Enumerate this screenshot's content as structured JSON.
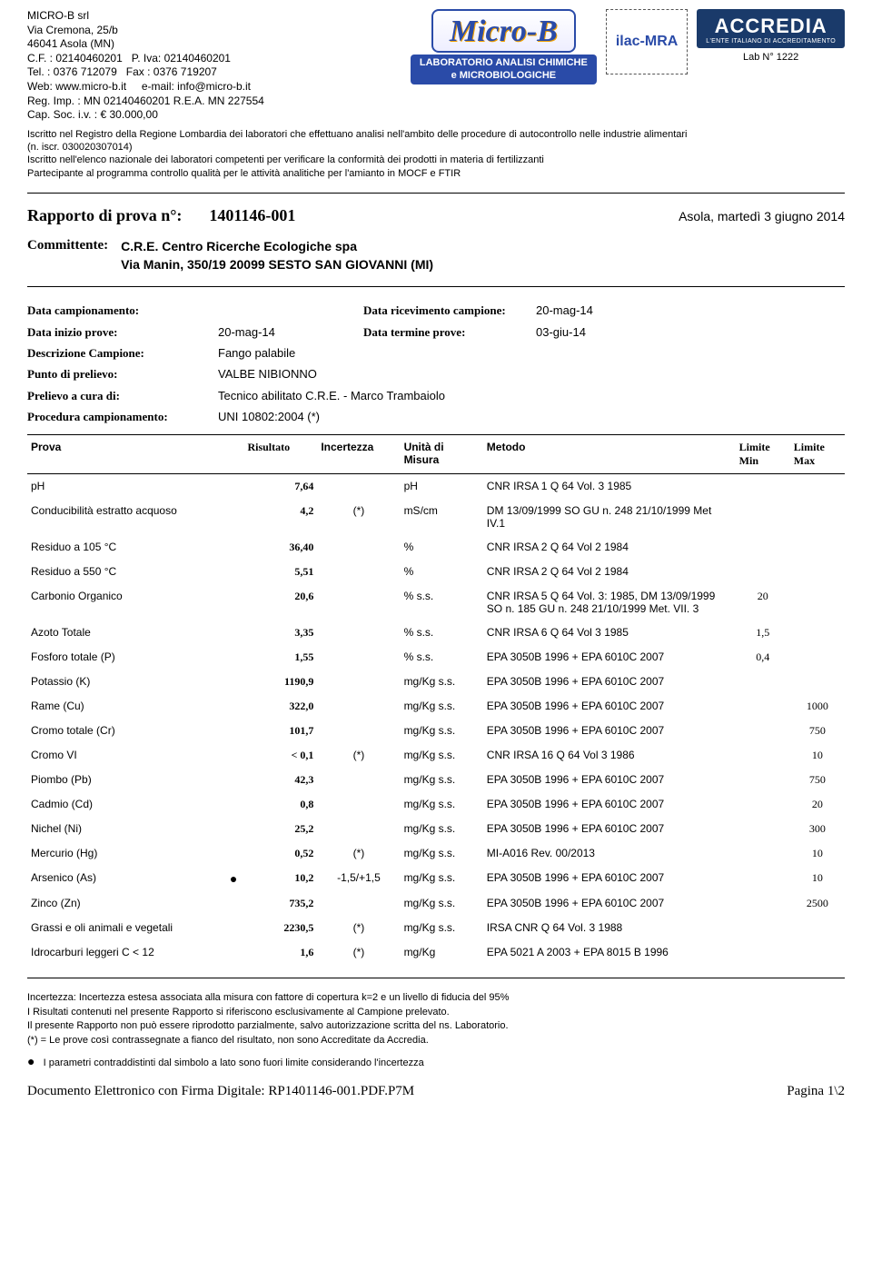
{
  "company": {
    "name": "MICRO-B srl",
    "street": "Via Cremona, 25/b",
    "city": "46041 Asola (MN)",
    "cf": "C.F. : 02140460201",
    "piva": "P. Iva: 02140460201",
    "tel": "Tel. : 0376 712079",
    "fax": "Fax : 0376 719207",
    "web": "Web: www.micro-b.it",
    "email": "e-mail: info@micro-b.it",
    "reg": "Reg. Imp. :    MN 02140460201 R.E.A. MN 227554",
    "cap": "Cap. Soc. i.v. :    € 30.000,00"
  },
  "logos": {
    "brand": "Micro-B",
    "lab_sub1": "LABORATORIO ANALISI CHIMICHE",
    "lab_sub2": "e MICROBIOLOGICHE",
    "ilac": "ilac-MRA",
    "accredia": "ACCREDIA",
    "accredia_sub": "L'ENTE ITALIANO DI ACCREDITAMENTO",
    "lab_no": "Lab N° 1222"
  },
  "registry": {
    "line1": "Iscritto nel Registro della Regione Lombardia dei laboratori che effettuano analisi nell'ambito delle procedure di autocontrollo nelle industrie alimentari",
    "line2": "(n. iscr. 030020307014)",
    "line3": "Iscritto nell'elenco nazionale dei laboratori competenti per verificare la conformità dei prodotti in materia di fertilizzanti",
    "line4": "Partecipante al programma controllo qualità per le attività analitiche per l'amianto in MOCF e FTIR"
  },
  "report": {
    "title_label": "Rapporto di prova n°:",
    "number": "1401146-001",
    "date": "Asola, martedì 3 giugno 2014"
  },
  "client": {
    "label": "Committente:",
    "name": "C.R.E. Centro Ricerche Ecologiche spa",
    "addr": "Via Manin, 350/19 20099 SESTO SAN GIOVANNI (MI)"
  },
  "meta": {
    "data_camp_label": "Data campionamento:",
    "data_ricev_label": "Data ricevimento campione:",
    "data_ricev_value": "20-mag-14",
    "data_inizio_label": "Data inizio prove:",
    "data_inizio_value": "20-mag-14",
    "data_termine_label": "Data termine prove:",
    "data_termine_value": "03-giu-14",
    "desc_label": "Descrizione Campione:",
    "desc_value": "Fango palabile",
    "punto_label": "Punto di prelievo:",
    "punto_value": "VALBE NIBIONNO",
    "prelievo_label": "Prelievo a cura di:",
    "prelievo_value": "Tecnico abilitato C.R.E. - Marco Trambaiolo",
    "proc_label": "Procedura campionamento:",
    "proc_value": "UNI 10802:2004 (*)"
  },
  "table_headers": {
    "prova": "Prova",
    "risultato": "Risultato",
    "incertezza": "Incertezza",
    "unita": "Unità di Misura",
    "metodo": "Metodo",
    "min": "Limite Min",
    "max": "Limite Max"
  },
  "rows": [
    {
      "prova": "pH",
      "mark": "",
      "ris": "7,64",
      "inc": "",
      "unit": "pH",
      "met": "CNR IRSA 1 Q 64 Vol. 3 1985",
      "min": "",
      "max": ""
    },
    {
      "prova": "Conducibilità estratto acquoso",
      "mark": "",
      "ris": "4,2",
      "inc": "(*)",
      "unit": "mS/cm",
      "met": "DM 13/09/1999 SO GU n. 248 21/10/1999 Met IV.1",
      "min": "",
      "max": ""
    },
    {
      "prova": "Residuo a 105 °C",
      "mark": "",
      "ris": "36,40",
      "inc": "",
      "unit": "%",
      "met": "CNR IRSA 2 Q 64 Vol 2 1984",
      "min": "",
      "max": ""
    },
    {
      "prova": "Residuo a 550 °C",
      "mark": "",
      "ris": "5,51",
      "inc": "",
      "unit": "%",
      "met": "CNR IRSA 2 Q 64 Vol 2 1984",
      "min": "",
      "max": ""
    },
    {
      "prova": "Carbonio Organico",
      "mark": "",
      "ris": "20,6",
      "inc": "",
      "unit": "% s.s.",
      "met": "CNR IRSA 5 Q 64 Vol. 3: 1985, DM 13/09/1999 SO n. 185 GU n. 248 21/10/1999 Met. VII. 3",
      "min": "20",
      "max": ""
    },
    {
      "prova": "Azoto Totale",
      "mark": "",
      "ris": "3,35",
      "inc": "",
      "unit": "% s.s.",
      "met": "CNR IRSA 6 Q 64 Vol 3 1985",
      "min": "1,5",
      "max": ""
    },
    {
      "prova": "Fosforo totale (P)",
      "mark": "",
      "ris": "1,55",
      "inc": "",
      "unit": "% s.s.",
      "met": "EPA 3050B 1996 + EPA 6010C 2007",
      "min": "0,4",
      "max": ""
    },
    {
      "prova": "Potassio  (K)",
      "mark": "",
      "ris": "1190,9",
      "inc": "",
      "unit": "mg/Kg s.s.",
      "met": "EPA 3050B 1996 + EPA 6010C 2007",
      "min": "",
      "max": ""
    },
    {
      "prova": "Rame (Cu)",
      "mark": "",
      "ris": "322,0",
      "inc": "",
      "unit": "mg/Kg s.s.",
      "met": "EPA 3050B 1996 + EPA 6010C 2007",
      "min": "",
      "max": "1000"
    },
    {
      "prova": "Cromo totale (Cr)",
      "mark": "",
      "ris": "101,7",
      "inc": "",
      "unit": "mg/Kg s.s.",
      "met": "EPA 3050B 1996 + EPA 6010C 2007",
      "min": "",
      "max": "750"
    },
    {
      "prova": "Cromo VI",
      "mark": "",
      "ris": "< 0,1",
      "inc": "(*)",
      "unit": "mg/Kg s.s.",
      "met": "CNR IRSA 16 Q 64 Vol 3 1986",
      "min": "",
      "max": "10"
    },
    {
      "prova": "Piombo (Pb)",
      "mark": "",
      "ris": "42,3",
      "inc": "",
      "unit": "mg/Kg s.s.",
      "met": "EPA 3050B 1996 + EPA 6010C 2007",
      "min": "",
      "max": "750"
    },
    {
      "prova": "Cadmio (Cd)",
      "mark": "",
      "ris": "0,8",
      "inc": "",
      "unit": "mg/Kg s.s.",
      "met": "EPA 3050B 1996 + EPA 6010C 2007",
      "min": "",
      "max": "20"
    },
    {
      "prova": "Nichel (Ni)",
      "mark": "",
      "ris": "25,2",
      "inc": "",
      "unit": "mg/Kg s.s.",
      "met": "EPA 3050B 1996 + EPA 6010C 2007",
      "min": "",
      "max": "300"
    },
    {
      "prova": "Mercurio (Hg)",
      "mark": "",
      "ris": "0,52",
      "inc": "(*)",
      "unit": "mg/Kg s.s.",
      "met": "MI-A016 Rev. 00/2013",
      "min": "",
      "max": "10"
    },
    {
      "prova": "Arsenico (As)",
      "mark": "●",
      "ris": "10,2",
      "inc": "-1,5/+1,5",
      "unit": "mg/Kg s.s.",
      "met": "EPA 3050B 1996 + EPA 6010C 2007",
      "min": "",
      "max": "10"
    },
    {
      "prova": "Zinco (Zn)",
      "mark": "",
      "ris": "735,2",
      "inc": "",
      "unit": "mg/Kg s.s.",
      "met": "EPA 3050B 1996 + EPA 6010C 2007",
      "min": "",
      "max": "2500"
    },
    {
      "prova": "Grassi e oli animali e vegetali",
      "mark": "",
      "ris": "2230,5",
      "inc": "(*)",
      "unit": "mg/Kg s.s.",
      "met": "IRSA CNR Q 64 Vol. 3 1988",
      "min": "",
      "max": ""
    },
    {
      "prova": "Idrocarburi leggeri C < 12",
      "mark": "",
      "ris": "1,6",
      "inc": "(*)",
      "unit": "mg/Kg",
      "met": "EPA 5021 A 2003 + EPA 8015 B 1996",
      "min": "",
      "max": ""
    }
  ],
  "notes": {
    "n1": "Incertezza: Incertezza estesa associata alla misura con fattore di copertura k=2 e un livello di fiducia del 95%",
    "n2": "I Risultati contenuti nel presente Rapporto si riferiscono esclusivamente al Campione prelevato.",
    "n3": "Il presente Rapporto non può essere riprodotto parzialmente, salvo autorizzazione scritta del ns. Laboratorio.",
    "n4": "(*) = Le prove così contrassegnate a fianco del risultato, non sono Accreditate da Accredia.",
    "bullet": "●",
    "n5": "I parametri contraddistinti dal simbolo a lato sono fuori limite considerando l'incertezza"
  },
  "footer": {
    "doc": "Documento Elettronico con Firma Digitale: RP1401146-001.PDF.P7M",
    "page": "Pagina 1\\2"
  }
}
